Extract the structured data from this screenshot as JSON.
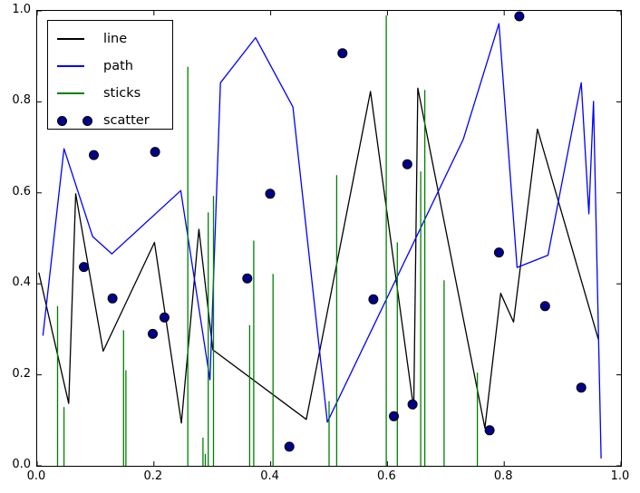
{
  "chart_data": {
    "type": "mixed",
    "title": "",
    "xlabel": "",
    "ylabel": "",
    "xlim": [
      0.0,
      1.0
    ],
    "ylim": [
      0.0,
      1.0
    ],
    "grid": false,
    "frame_color": "#000000",
    "background_color": "#ffffff",
    "x_ticks": {
      "values": [
        0.0,
        0.2,
        0.4,
        0.6,
        0.8,
        1.0
      ],
      "labels": [
        "0.0",
        "0.2",
        "0.4",
        "0.6",
        "0.8",
        "1.0"
      ]
    },
    "y_ticks": {
      "values": [
        0.0,
        0.2,
        0.4,
        0.6,
        0.8,
        1.0
      ],
      "labels": [
        "0.0",
        "0.2",
        "0.4",
        "0.6",
        "0.8",
        "1.0"
      ]
    },
    "legend": {
      "position": "upper-left",
      "entries": [
        {
          "label": "line",
          "type": "line",
          "color": "#000000"
        },
        {
          "label": "path",
          "type": "line",
          "color": "#0000ff"
        },
        {
          "label": "sticks",
          "type": "line",
          "color": "#008000"
        },
        {
          "label": "scatter",
          "type": "marker",
          "color": "#00008b",
          "edge_color": "#000000"
        }
      ]
    },
    "series": [
      {
        "name": "line",
        "type": "line",
        "color": "#000000",
        "linewidth": 1.3,
        "points": [
          [
            0.003,
            0.424
          ],
          [
            0.054,
            0.137
          ],
          [
            0.066,
            0.598
          ],
          [
            0.113,
            0.252
          ],
          [
            0.201,
            0.491
          ],
          [
            0.247,
            0.094
          ],
          [
            0.277,
            0.52
          ],
          [
            0.301,
            0.255
          ],
          [
            0.461,
            0.102
          ],
          [
            0.571,
            0.823
          ],
          [
            0.645,
            0.125
          ],
          [
            0.652,
            0.83
          ],
          [
            0.767,
            0.083
          ],
          [
            0.794,
            0.379
          ],
          [
            0.816,
            0.316
          ],
          [
            0.857,
            0.74
          ],
          [
            0.961,
            0.279
          ]
        ]
      },
      {
        "name": "path",
        "type": "line",
        "color": "#0000ff",
        "linewidth": 1.3,
        "points": [
          [
            0.01,
            0.287
          ],
          [
            0.046,
            0.697
          ],
          [
            0.095,
            0.504
          ],
          [
            0.128,
            0.466
          ],
          [
            0.246,
            0.605
          ],
          [
            0.296,
            0.189
          ],
          [
            0.314,
            0.842
          ],
          [
            0.374,
            0.941
          ],
          [
            0.438,
            0.789
          ],
          [
            0.497,
            0.096
          ],
          [
            0.73,
            0.718
          ],
          [
            0.791,
            0.972
          ],
          [
            0.822,
            0.436
          ],
          [
            0.875,
            0.463
          ],
          [
            0.932,
            0.842
          ],
          [
            0.945,
            0.554
          ],
          [
            0.953,
            0.801
          ],
          [
            0.966,
            0.017
          ]
        ]
      },
      {
        "name": "sticks",
        "type": "sticks",
        "color": "#008000",
        "linewidth": 1.3,
        "points": [
          [
            0.035,
            0.351
          ],
          [
            0.046,
            0.129
          ],
          [
            0.148,
            0.298
          ],
          [
            0.152,
            0.21
          ],
          [
            0.258,
            0.877
          ],
          [
            0.284,
            0.062
          ],
          [
            0.288,
            0.026
          ],
          [
            0.293,
            0.557
          ],
          [
            0.302,
            0.593
          ],
          [
            0.364,
            0.309
          ],
          [
            0.371,
            0.495
          ],
          [
            0.404,
            0.422
          ],
          [
            0.5,
            0.142
          ],
          [
            0.513,
            0.639
          ],
          [
            0.598,
            0.99
          ],
          [
            0.617,
            0.491
          ],
          [
            0.657,
            0.647
          ],
          [
            0.664,
            0.826
          ],
          [
            0.697,
            0.408
          ],
          [
            0.754,
            0.205
          ]
        ]
      },
      {
        "name": "scatter",
        "type": "scatter",
        "color": "#00008b",
        "edge_color": "#000000",
        "marker_radius": 5,
        "points": [
          [
            0.08,
            0.437
          ],
          [
            0.097,
            0.683
          ],
          [
            0.129,
            0.368
          ],
          [
            0.198,
            0.29
          ],
          [
            0.202,
            0.69
          ],
          [
            0.218,
            0.326
          ],
          [
            0.36,
            0.412
          ],
          [
            0.399,
            0.598
          ],
          [
            0.432,
            0.042
          ],
          [
            0.523,
            0.907
          ],
          [
            0.576,
            0.366
          ],
          [
            0.611,
            0.109
          ],
          [
            0.634,
            0.663
          ],
          [
            0.643,
            0.135
          ],
          [
            0.775,
            0.078
          ],
          [
            0.791,
            0.469
          ],
          [
            0.826,
            0.988
          ],
          [
            0.87,
            0.351
          ],
          [
            0.932,
            0.172
          ]
        ]
      }
    ]
  }
}
